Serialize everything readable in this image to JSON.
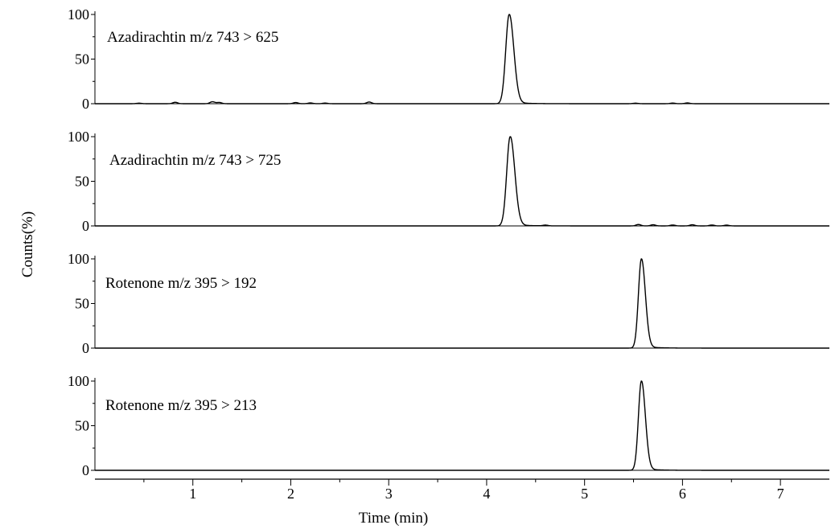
{
  "chart_data": {
    "type": "line",
    "xlabel": "Time (min)",
    "ylabel": "Counts(%)",
    "xlim": [
      0,
      7.5
    ],
    "ylim": [
      0,
      100
    ],
    "x_ticks": [
      1,
      2,
      3,
      4,
      5,
      6,
      7
    ],
    "x_tick_labels": [
      "1",
      "2",
      "3",
      "4",
      "5",
      "6",
      "7"
    ],
    "y_ticks": [
      0,
      50,
      100
    ],
    "y_tick_labels": [
      "0",
      "50",
      "100"
    ],
    "grid": false,
    "legend": "none",
    "line_color": "#000000",
    "panels": [
      {
        "label": "Azadirachtin  m/z 743 > 625",
        "peak": {
          "time": 4.23,
          "height": 100,
          "sigma": 0.035
        },
        "baseline_bumps": [
          [
            0.45,
            0.6
          ],
          [
            0.82,
            1.6
          ],
          [
            1.2,
            2.2
          ],
          [
            1.27,
            1.4
          ],
          [
            2.05,
            1.3
          ],
          [
            2.2,
            0.9
          ],
          [
            2.35,
            0.7
          ],
          [
            2.8,
            1.9
          ],
          [
            5.52,
            0.6
          ],
          [
            5.9,
            0.7
          ],
          [
            6.05,
            0.9
          ]
        ]
      },
      {
        "label": "Azadirachtin  m/z 743 > 725",
        "peak": {
          "time": 4.24,
          "height": 100,
          "sigma": 0.035
        },
        "baseline_bumps": [
          [
            4.6,
            0.8
          ],
          [
            5.55,
            1.6
          ],
          [
            5.7,
            1.3
          ],
          [
            5.9,
            1.0
          ],
          [
            6.1,
            1.3
          ],
          [
            6.3,
            1.0
          ],
          [
            6.45,
            0.9
          ]
        ]
      },
      {
        "label": "Rotenone  m/z 395 > 192",
        "peak": {
          "time": 5.58,
          "height": 100,
          "sigma": 0.03
        },
        "baseline_bumps": []
      },
      {
        "label": "Rotenone  m/z 395 > 213",
        "peak": {
          "time": 5.58,
          "height": 100,
          "sigma": 0.03
        },
        "baseline_bumps": []
      }
    ]
  }
}
